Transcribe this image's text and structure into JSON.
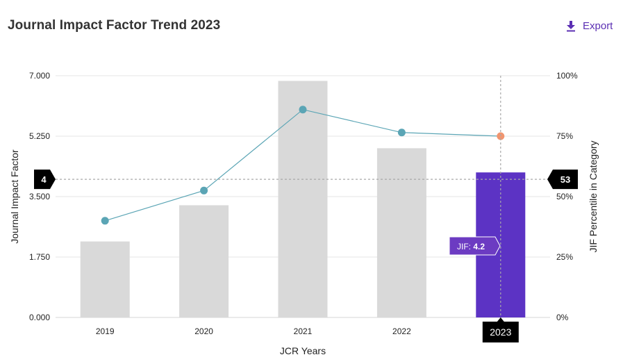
{
  "header": {
    "title": "Journal Impact Factor Trend 2023",
    "export_label": "Export",
    "export_icon": "download-icon"
  },
  "colors": {
    "bar": "#d9d9d9",
    "bar_highlight": "#5c33c4",
    "line": "#5ba5b5",
    "point": "#5ba5b5",
    "point_highlight": "#f0956f",
    "tooltip_bg": "#6c3bc2"
  },
  "chart_data": {
    "type": "bar",
    "title": "Journal Impact Factor Trend 2023",
    "xlabel": "JCR Years",
    "ylabel": "Journal Impact Factor",
    "y2label": "JIF Percentile in Category",
    "categories": [
      "2019",
      "2020",
      "2021",
      "2022",
      "2023"
    ],
    "ylim": [
      0,
      7
    ],
    "y2lim": [
      0,
      100
    ],
    "y_ticks": [
      "0.000",
      "1.750",
      "3.500",
      "5.250",
      "7.000"
    ],
    "y2_ticks": [
      "0%",
      "25%",
      "50%",
      "75%",
      "100%"
    ],
    "series": [
      {
        "name": "Journal Impact Factor",
        "type": "bar",
        "axis": "left",
        "values": [
          2.2,
          3.25,
          6.85,
          4.9,
          4.2
        ]
      },
      {
        "name": "JIF Percentile in Category",
        "type": "line",
        "axis": "right",
        "values": [
          40,
          52.5,
          86,
          76.5,
          75
        ]
      }
    ],
    "highlight_index": 4,
    "crosshair": {
      "x_label": "2023",
      "left_value_label": "4",
      "right_value_label": "53"
    },
    "tooltip": {
      "label": "JIF:",
      "value": "4.2"
    },
    "grid": true
  }
}
